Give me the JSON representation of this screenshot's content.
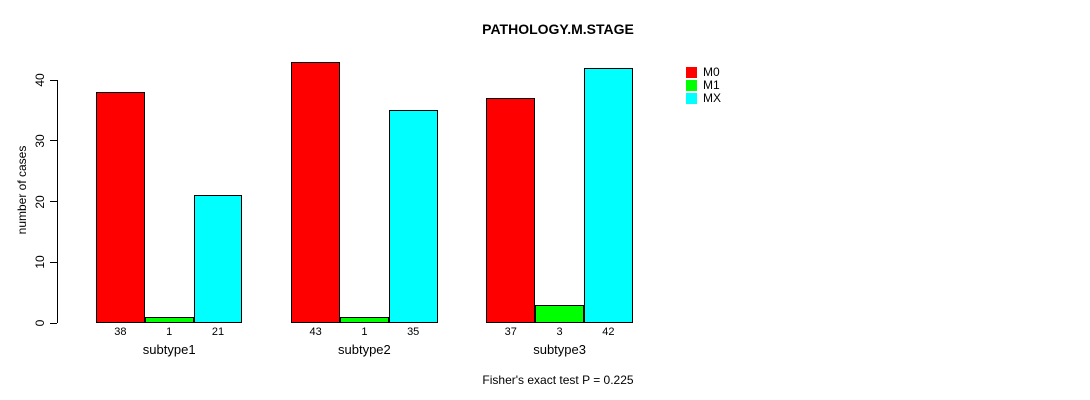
{
  "title": "PATHOLOGY.M.STAGE",
  "chart_data": {
    "type": "bar",
    "categories": [
      "subtype1",
      "subtype2",
      "subtype3"
    ],
    "series": [
      {
        "name": "M0",
        "color": "#ff0000",
        "values": [
          38,
          43,
          37
        ]
      },
      {
        "name": "M1",
        "color": "#00ff00",
        "values": [
          1,
          1,
          3
        ]
      },
      {
        "name": "MX",
        "color": "#00ffff",
        "values": [
          21,
          35,
          42
        ]
      }
    ],
    "title": "PATHOLOGY.M.STAGE",
    "xlabel": "",
    "ylabel": "number of cases",
    "ylim": [
      0,
      43
    ],
    "yticks": [
      0,
      10,
      20,
      30,
      40
    ],
    "grid": false,
    "legend_position": "top-right",
    "bar_value_labels_shown": true
  },
  "footer": {
    "note": "Fisher's exact test P = 0.225"
  }
}
